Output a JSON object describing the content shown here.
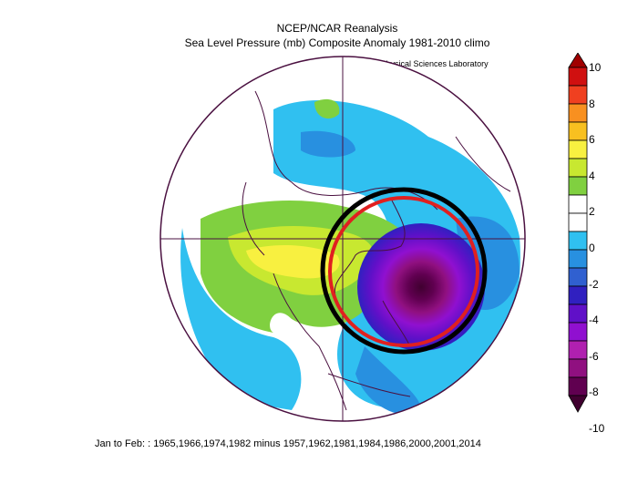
{
  "header": {
    "title": "NCEP/NCAR Reanalysis",
    "subtitle": "Sea Level Pressure (mb) Composite Anomaly 1981-2010 climo",
    "credit": "NOAA Physical Sciences Laboratory"
  },
  "footer": {
    "caption": "Jan to Feb: : 1965,1966,1974,1982 minus 1957,1962,1981,1984,1986,2000,2001,2014"
  },
  "colorbar": {
    "ticks": [
      "10",
      "8",
      "6",
      "4",
      "2",
      "0",
      "-2",
      "-4",
      "-6",
      "-8",
      "-10"
    ],
    "colors": [
      "#a00000",
      "#d01010",
      "#f04020",
      "#f89020",
      "#f8c020",
      "#f8f040",
      "#c8e830",
      "#80d040",
      "#ffffff",
      "#ffffff",
      "#30c0f0",
      "#2890e0",
      "#3060d0",
      "#3020c0",
      "#6010c8",
      "#9010d0",
      "#b020b0",
      "#901080",
      "#600050",
      "#400030"
    ]
  },
  "annotations": {
    "black_circle": "black-ring",
    "red_circle": "red-ring"
  },
  "colors": {
    "map_outline": "#4a1040",
    "ring_black": "#000000",
    "ring_red": "#e02020"
  }
}
